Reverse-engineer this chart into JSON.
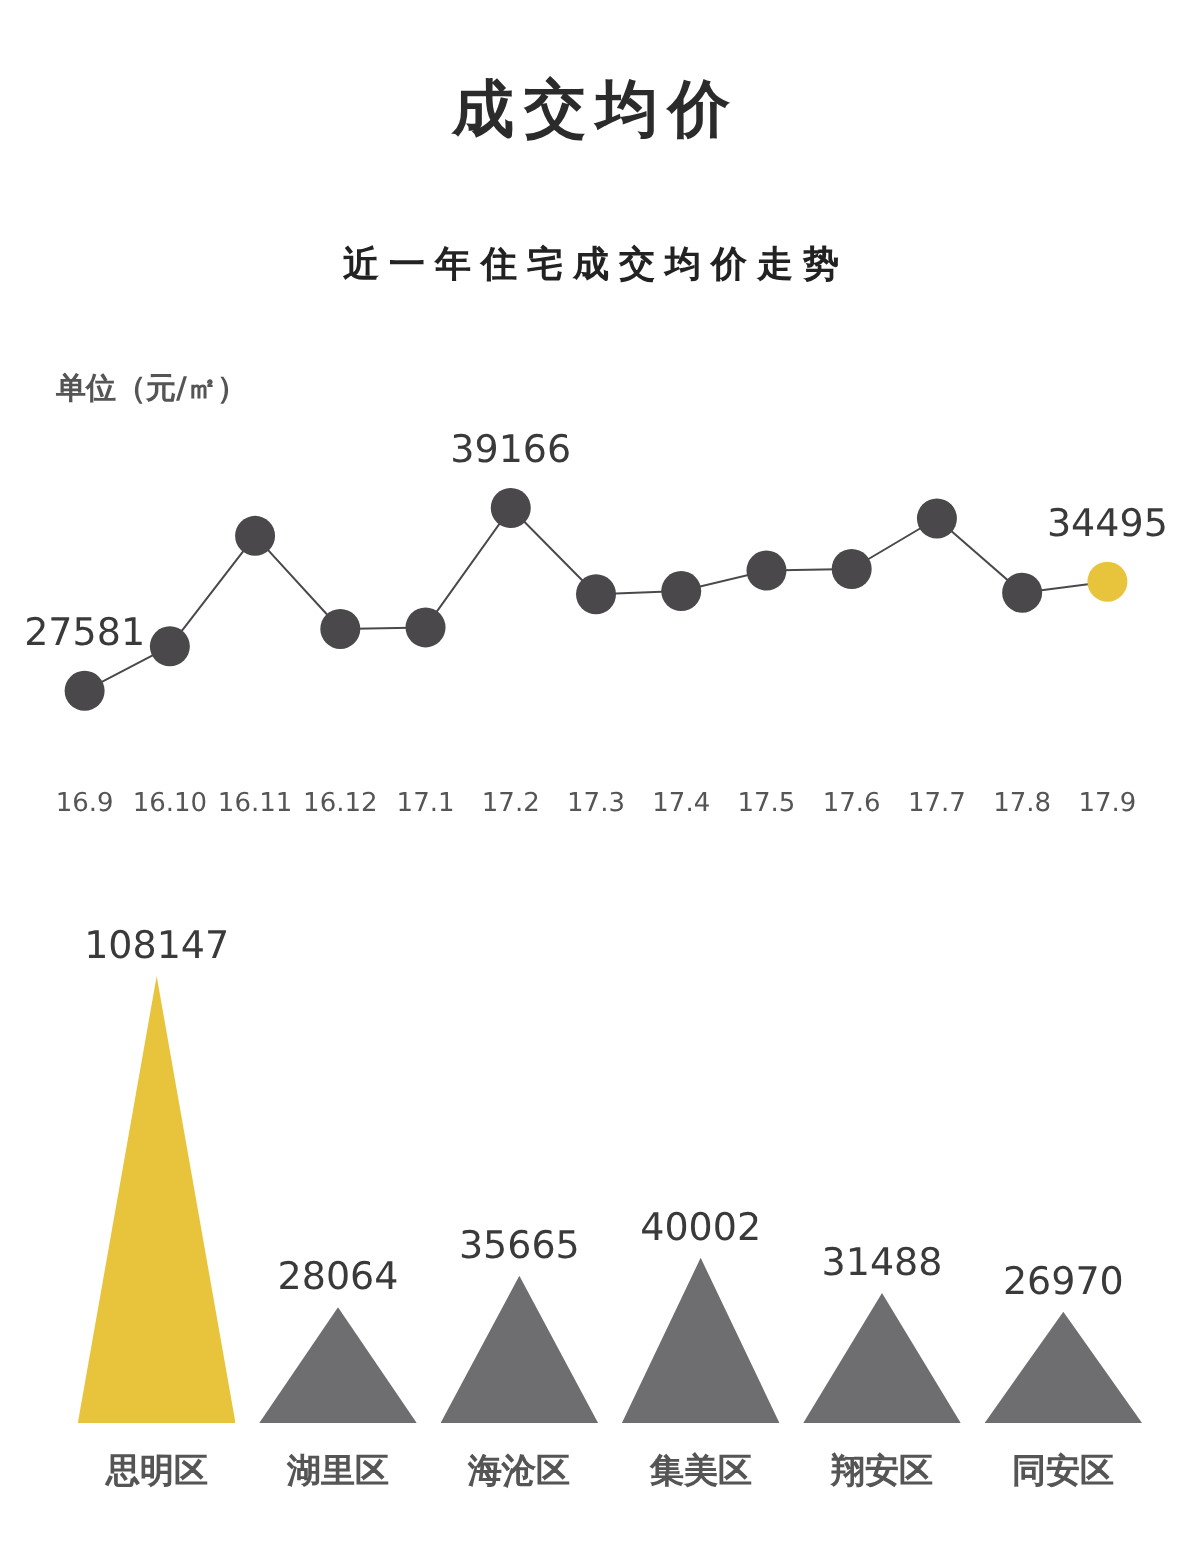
{
  "chart_data": [
    {
      "type": "line",
      "title": "成交均价",
      "subtitle": "近一年住宅成交均价走势",
      "ylabel": "单位（元/㎡）",
      "categories": [
        "16.9",
        "16.10",
        "16.11",
        "16.12",
        "17.1",
        "17.2",
        "17.3",
        "17.4",
        "17.5",
        "17.6",
        "17.7",
        "17.8",
        "17.9"
      ],
      "values": [
        27581,
        30400,
        37400,
        31500,
        31600,
        39166,
        33700,
        33900,
        35200,
        35300,
        38500,
        33800,
        34495
      ],
      "value_labels": [
        "27581",
        null,
        null,
        null,
        null,
        "39166",
        null,
        null,
        null,
        null,
        null,
        null,
        "34495"
      ],
      "color": "#4a484b",
      "colors": [
        "#4a484b",
        "#4a484b",
        "#4a484b",
        "#4a484b",
        "#4a484b",
        "#4a484b",
        "#4a484b",
        "#4a484b",
        "#4a484b",
        "#4a484b",
        "#4a484b",
        "#4a484b",
        "#e8c43c"
      ],
      "marker": "circle",
      "tick_labels": "x"
    },
    {
      "type": "bar",
      "categories": [
        "思明区",
        "湖里区",
        "海沧区",
        "集美区",
        "翔安区",
        "同安区"
      ],
      "values": [
        108147,
        28064,
        35665,
        40002,
        31488,
        26970
      ],
      "colors": [
        "#e8c43c",
        "#6e6d70",
        "#6e6d70",
        "#6e6d70",
        "#6e6d70",
        "#6e6d70"
      ],
      "data_labels": true,
      "tick_labels": "x"
    }
  ]
}
